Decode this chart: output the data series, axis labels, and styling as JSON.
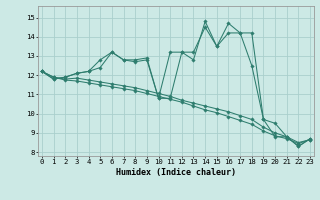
{
  "xlabel": "Humidex (Indice chaleur)",
  "background_color": "#cce9e5",
  "grid_color": "#aacfcc",
  "line_color": "#2e7d6e",
  "x_ticks": [
    0,
    1,
    2,
    3,
    4,
    5,
    6,
    7,
    8,
    9,
    10,
    11,
    12,
    13,
    14,
    15,
    16,
    17,
    18,
    19,
    20,
    21,
    22,
    23
  ],
  "y_ticks": [
    8,
    9,
    10,
    11,
    12,
    13,
    14,
    15
  ],
  "ylim": [
    7.8,
    15.6
  ],
  "xlim": [
    -0.3,
    23.3
  ],
  "tick_fontsize": 5.2,
  "label_fontsize": 6.0,
  "series": [
    [
      12.2,
      11.8,
      11.9,
      12.1,
      12.2,
      12.8,
      13.2,
      12.8,
      12.8,
      12.9,
      10.8,
      13.2,
      13.2,
      12.8,
      14.8,
      13.5,
      14.7,
      14.2,
      14.2,
      9.7,
      9.5,
      8.8,
      8.3,
      8.7
    ],
    [
      12.2,
      11.8,
      11.9,
      12.1,
      12.2,
      12.4,
      13.2,
      12.8,
      12.7,
      12.8,
      10.8,
      10.8,
      13.2,
      13.2,
      14.5,
      13.5,
      14.2,
      14.2,
      12.5,
      9.7,
      8.8,
      8.8,
      8.3,
      8.7
    ],
    [
      12.2,
      11.9,
      11.8,
      11.85,
      11.75,
      11.65,
      11.55,
      11.45,
      11.35,
      11.2,
      11.05,
      10.9,
      10.7,
      10.55,
      10.4,
      10.25,
      10.1,
      9.9,
      9.7,
      9.3,
      9.0,
      8.8,
      8.5,
      8.65
    ],
    [
      12.2,
      11.9,
      11.75,
      11.7,
      11.6,
      11.5,
      11.4,
      11.3,
      11.2,
      11.05,
      10.9,
      10.75,
      10.6,
      10.4,
      10.2,
      10.05,
      9.85,
      9.65,
      9.45,
      9.1,
      8.85,
      8.7,
      8.45,
      8.65
    ]
  ]
}
